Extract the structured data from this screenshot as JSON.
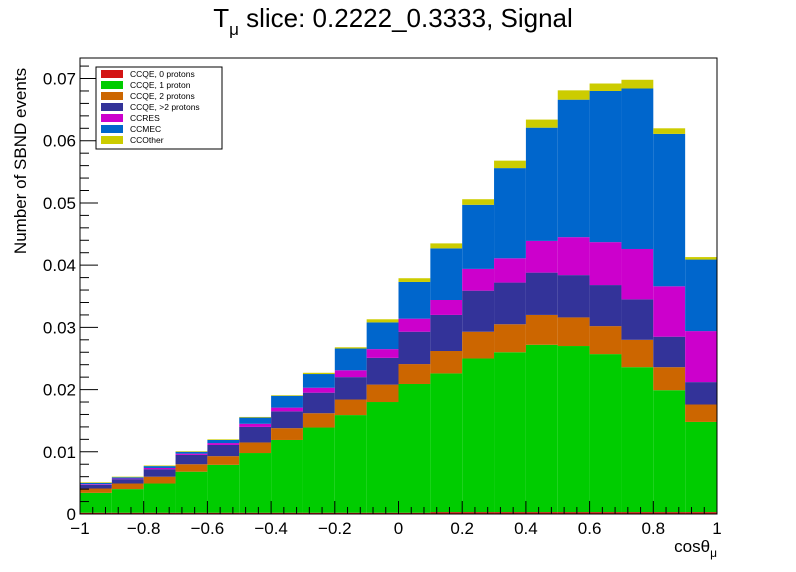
{
  "chart_data": {
    "type": "bar",
    "stacked": true,
    "title_main": "T",
    "title_sub": "μ",
    "title_rest": " slice: 0.2222_0.3333, Signal",
    "xlabel_main": "cosθ",
    "xlabel_sub": "μ",
    "ylabel": "Number of SBND events",
    "xlim": [
      -1,
      1
    ],
    "ylim": [
      0,
      0.0733
    ],
    "x_ticks": [
      "−1",
      "−0.8",
      "−0.6",
      "−0.4",
      "−0.2",
      "0",
      "0.2",
      "0.4",
      "0.6",
      "0.8",
      "1"
    ],
    "x_tick_values": [
      -1,
      -0.8,
      -0.6,
      -0.4,
      -0.2,
      0,
      0.2,
      0.4,
      0.6,
      0.8,
      1
    ],
    "y_ticks": [
      "0",
      "0.01",
      "0.02",
      "0.03",
      "0.04",
      "0.05",
      "0.06",
      "0.07"
    ],
    "y_tick_values": [
      0,
      0.01,
      0.02,
      0.03,
      0.04,
      0.05,
      0.06,
      0.07
    ],
    "bin_edges": [
      -1,
      -0.9,
      -0.8,
      -0.7,
      -0.6,
      -0.5,
      -0.4,
      -0.3,
      -0.2,
      -0.1,
      0,
      0.1,
      0.2,
      0.3,
      0.4,
      0.5,
      0.6,
      0.7,
      0.8,
      0.9,
      1
    ],
    "legend_placement": "top-left",
    "series": [
      {
        "name": "CCQE, 0 protons",
        "color": "#d31414",
        "values": [
          0.0002,
          0.0002,
          0.0002,
          0.0002,
          0.0002,
          0.0002,
          0.0002,
          0.0002,
          0.0002,
          0.0002,
          0.0002,
          0.0003,
          0.0003,
          0.0003,
          0.0003,
          0.0003,
          0.0003,
          0.0003,
          0.0003,
          0.0003
        ]
      },
      {
        "name": "CCQE, 1 proton",
        "color": "#00cc00",
        "values": [
          0.0032,
          0.0038,
          0.0047,
          0.0066,
          0.0077,
          0.0096,
          0.0117,
          0.0137,
          0.0157,
          0.0178,
          0.0207,
          0.0223,
          0.0247,
          0.0257,
          0.0269,
          0.0267,
          0.0254,
          0.0233,
          0.0196,
          0.0145
        ]
      },
      {
        "name": "CCQE, 2 protons",
        "color": "#cc6600",
        "values": [
          0.0007,
          0.0009,
          0.0011,
          0.0012,
          0.0014,
          0.0017,
          0.0019,
          0.0023,
          0.0025,
          0.0028,
          0.0032,
          0.0036,
          0.0043,
          0.0045,
          0.0048,
          0.0046,
          0.0045,
          0.0044,
          0.0037,
          0.0028
        ]
      },
      {
        "name": "CCQE, >2 protons",
        "color": "#333399",
        "values": [
          0.0006,
          0.0007,
          0.0012,
          0.0015,
          0.0018,
          0.0025,
          0.0027,
          0.0033,
          0.0036,
          0.0043,
          0.0052,
          0.0058,
          0.0066,
          0.0067,
          0.0068,
          0.0068,
          0.0066,
          0.0065,
          0.0049,
          0.0036
        ]
      },
      {
        "name": "CCRES",
        "color": "#cc00cc",
        "values": [
          0.0001,
          0.0001,
          0.0002,
          0.0002,
          0.0003,
          0.0005,
          0.0006,
          0.0008,
          0.0011,
          0.0014,
          0.0021,
          0.0024,
          0.0035,
          0.0039,
          0.0051,
          0.0061,
          0.0069,
          0.0081,
          0.0081,
          0.0082
        ]
      },
      {
        "name": "CCMEC",
        "color": "#0066cc",
        "values": [
          0.0002,
          0.0002,
          0.0003,
          0.0003,
          0.0005,
          0.001,
          0.0019,
          0.0022,
          0.0035,
          0.0043,
          0.0059,
          0.0083,
          0.0103,
          0.0145,
          0.0182,
          0.0221,
          0.0243,
          0.0258,
          0.0245,
          0.0115
        ]
      },
      {
        "name": "CCOther",
        "color": "#cccc00",
        "values": [
          0.0001,
          0.0001,
          0.0001,
          0.0001,
          0.0001,
          0.0001,
          0.0001,
          0.0002,
          0.0002,
          0.0005,
          0.0006,
          0.0008,
          0.0009,
          0.0012,
          0.0013,
          0.0015,
          0.0012,
          0.0014,
          0.0009,
          0.0004
        ]
      }
    ]
  }
}
